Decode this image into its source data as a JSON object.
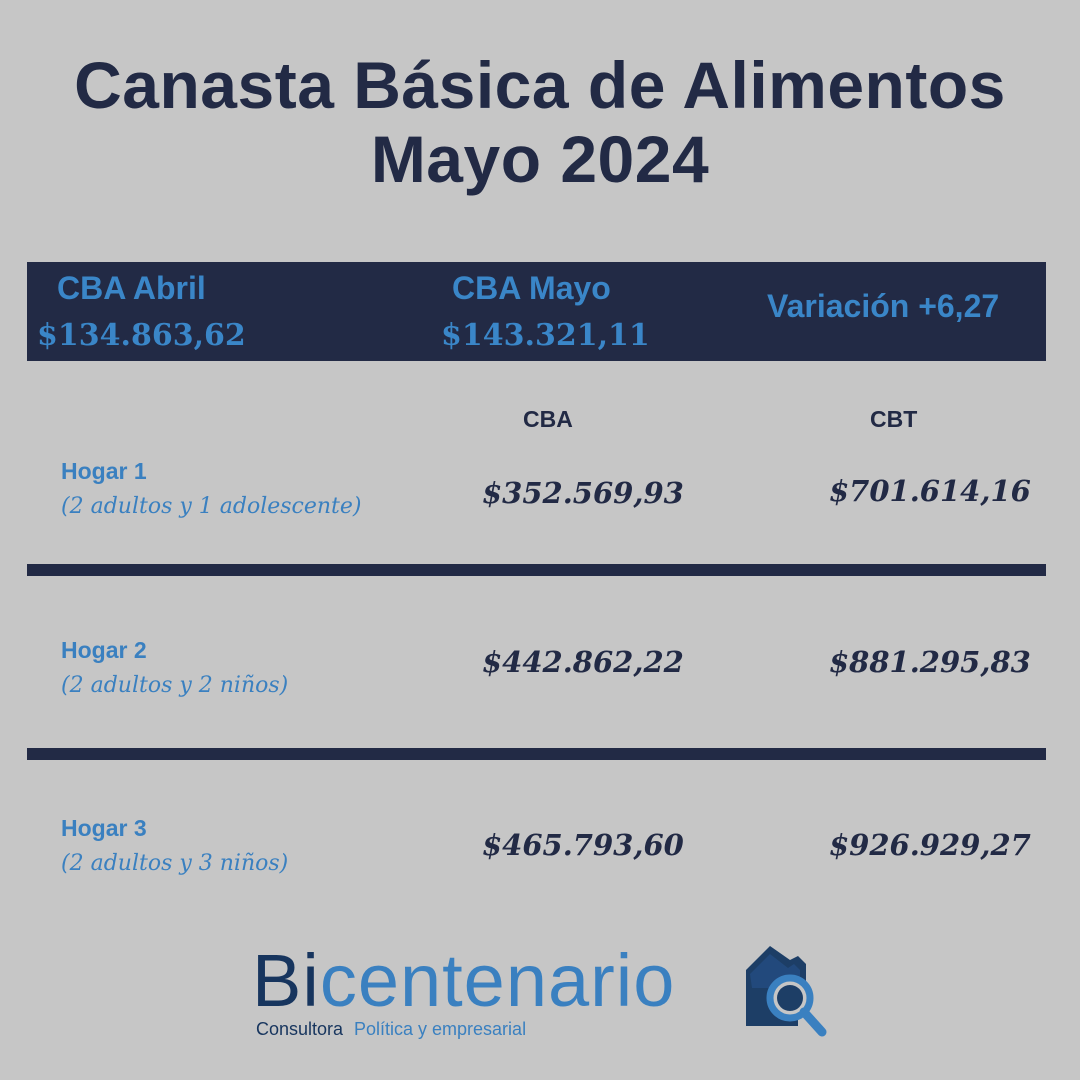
{
  "title": {
    "line1": "Canasta Básica de Alimentos",
    "line2": "Mayo 2024"
  },
  "summary": {
    "abril_label": "CBA Abril",
    "abril_value": "$134.863,62",
    "mayo_label": "CBA Mayo",
    "mayo_value": "$143.321,11",
    "variacion": "Variación +6,27"
  },
  "columns": {
    "cba": "CBA",
    "cbt": "CBT"
  },
  "hogares": [
    {
      "name": "Hogar 1",
      "desc": "(2 adultos y 1 adolescente)",
      "cba": "$352.569,93",
      "cbt": "$701.614,16"
    },
    {
      "name": "Hogar 2",
      "desc": "(2 adultos y 2 niños)",
      "cba": "$442.862,22",
      "cbt": "$881.295,83"
    },
    {
      "name": "Hogar 3",
      "desc": "(2 adultos y 3 niños)",
      "cba": "$465.793,60",
      "cbt": "$926.929,27"
    }
  ],
  "logo": {
    "bi": "Bi",
    "rest": "centenario",
    "sub1": "Consultora",
    "sub2": "Política y empresarial",
    "icon": "house-magnifier-icon"
  },
  "colors": {
    "background": "#c6c6c6",
    "navy": "#222a45",
    "accent_blue": "#3a80c0"
  }
}
